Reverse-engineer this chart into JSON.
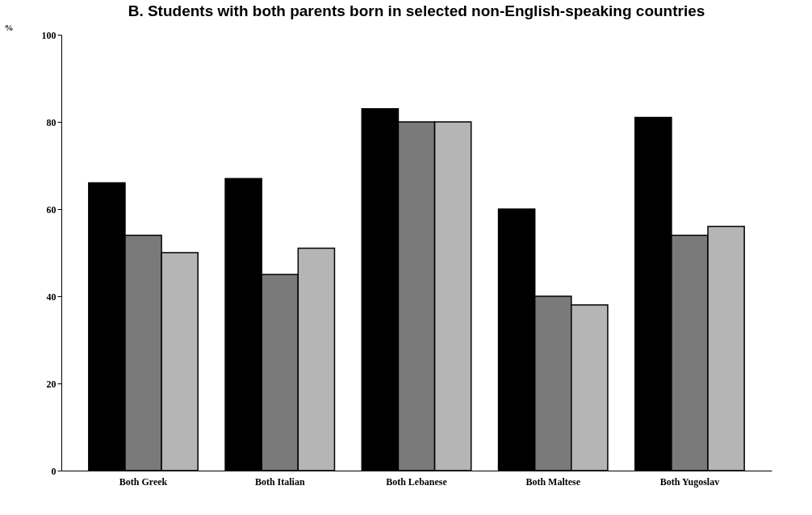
{
  "chart_data": {
    "type": "bar",
    "title": "B.  Students with both parents born in selected non-English-speaking countries",
    "ylabel": "%",
    "categories": [
      "Both Greek",
      "Both Italian",
      "Both Lebanese",
      "Both Maltese",
      "Both Yugoslav"
    ],
    "series": [
      {
        "color": "#000000",
        "values": [
          66,
          67,
          83,
          60,
          81
        ]
      },
      {
        "color": "#7a7a7a",
        "values": [
          54,
          45,
          80,
          40,
          54
        ]
      },
      {
        "color": "#b5b5b5",
        "values": [
          50,
          51,
          80,
          38,
          56
        ]
      }
    ],
    "ylim": [
      0,
      100
    ],
    "yticks": [
      0,
      20,
      40,
      60,
      80,
      100
    ],
    "grid": false,
    "legend": false
  }
}
